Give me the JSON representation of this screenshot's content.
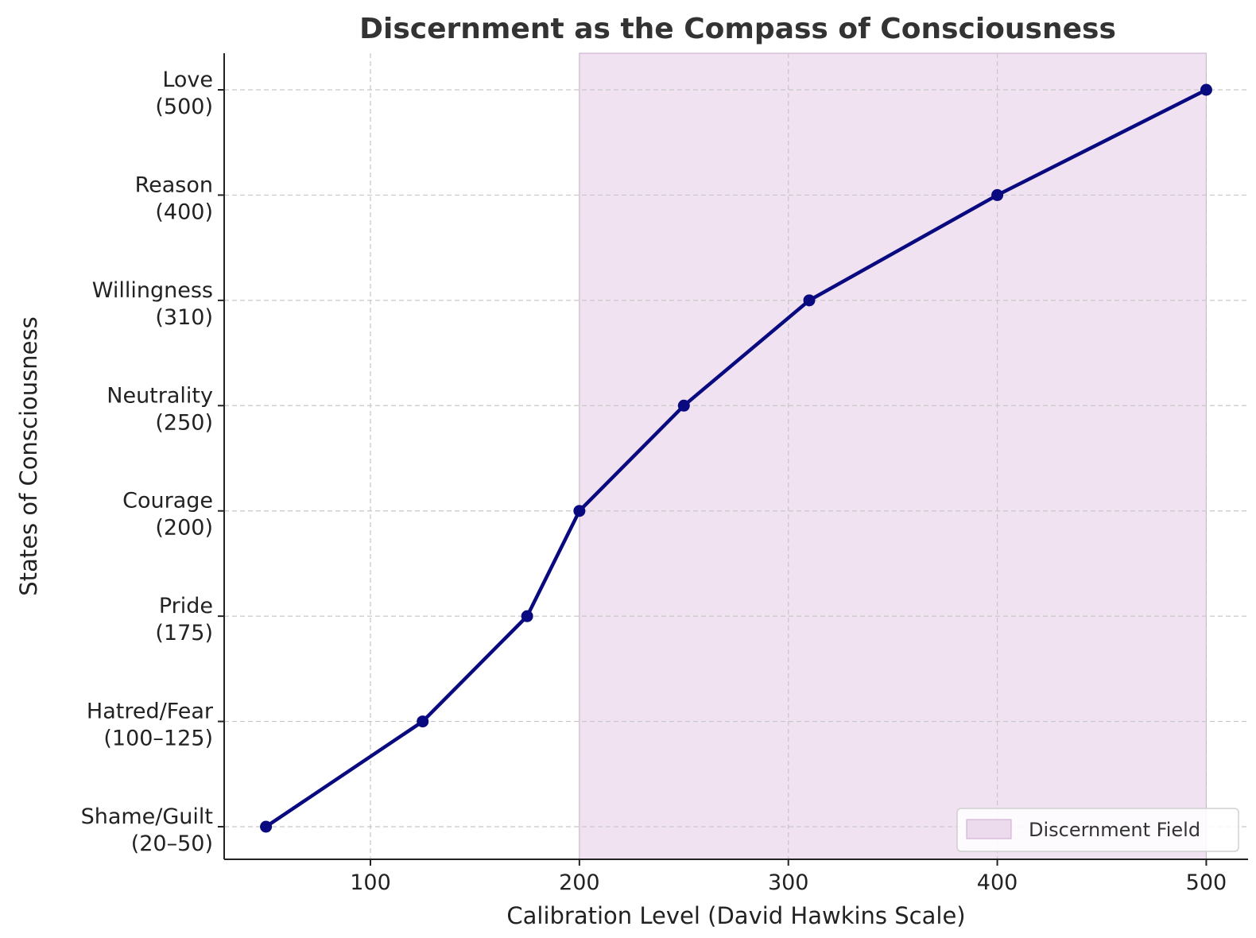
{
  "chart_data": {
    "type": "line",
    "title": "Discernment as the Compass of Consciousness",
    "xlabel": "Calibration Level (David Hawkins Scale)",
    "ylabel": "States of Consciousness",
    "xlim": [
      30,
      520
    ],
    "x_ticks": [
      100,
      200,
      300,
      400,
      500
    ],
    "grid": true,
    "legend_placement": "lower-right",
    "line_color": "#0a0a80",
    "shade_color": "#e1c6e3",
    "shaded_region": {
      "label": "Discernment Field",
      "x_start": 200,
      "x_end": 500
    },
    "categories": [
      {
        "name": "Shame/Guilt",
        "range": "(20–50)"
      },
      {
        "name": "Hatred/Fear",
        "range": "(100–125)"
      },
      {
        "name": "Pride",
        "range": "(175)"
      },
      {
        "name": "Courage",
        "range": "(200)"
      },
      {
        "name": "Neutrality",
        "range": "(250)"
      },
      {
        "name": "Willingness",
        "range": "(310)"
      },
      {
        "name": "Reason",
        "range": "(400)"
      },
      {
        "name": "Love",
        "range": "(500)"
      }
    ],
    "x": [
      50,
      125,
      175,
      200,
      250,
      310,
      400,
      500
    ]
  }
}
